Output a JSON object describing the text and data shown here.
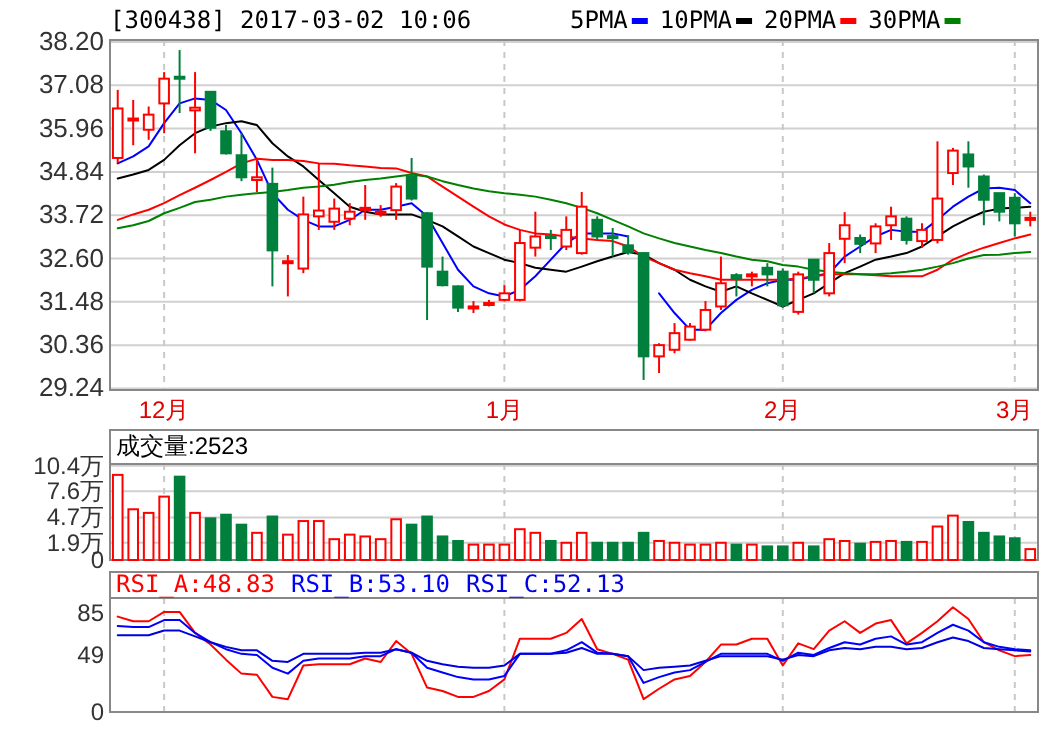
{
  "chart_data": [
    {
      "type": "candlestick",
      "title": "[300438] 2017-03-02 10:06",
      "categories": [
        null,
        null,
        null,
        "12月",
        null,
        null,
        null,
        null,
        null,
        null,
        null,
        null,
        null,
        null,
        null,
        null,
        null,
        null,
        null,
        null,
        null,
        null,
        null,
        null,
        null,
        "1月",
        null,
        null,
        null,
        null,
        null,
        null,
        null,
        null,
        null,
        null,
        null,
        null,
        null,
        null,
        null,
        null,
        null,
        "2月",
        null,
        null,
        null,
        null,
        null,
        null,
        null,
        null,
        null,
        null,
        null,
        null,
        null,
        null,
        "3月",
        null
      ],
      "ohlc": [
        [
          35.2,
          36.96,
          35.06,
          36.48
        ],
        [
          36.17,
          36.7,
          35.53,
          36.22
        ],
        [
          35.93,
          36.53,
          35.67,
          36.32
        ],
        [
          36.61,
          37.42,
          35.84,
          37.25
        ],
        [
          37.3,
          37.99,
          36.36,
          37.28
        ],
        [
          36.43,
          37.42,
          35.32,
          36.5
        ],
        [
          36.91,
          36.93,
          35.9,
          35.98
        ],
        [
          35.89,
          36.05,
          35.29,
          35.32
        ],
        [
          35.27,
          35.84,
          34.6,
          34.7
        ],
        [
          34.63,
          35.15,
          34.32,
          34.7
        ],
        [
          34.53,
          34.95,
          31.88,
          32.81
        ],
        [
          32.51,
          32.69,
          31.62,
          32.53
        ],
        [
          32.34,
          34.2,
          32.22,
          33.74
        ],
        [
          33.69,
          35.06,
          33.34,
          33.84
        ],
        [
          33.55,
          34.15,
          33.34,
          33.89
        ],
        [
          33.63,
          34.03,
          33.46,
          33.81
        ],
        [
          33.9,
          34.5,
          33.6,
          33.91
        ],
        [
          33.8,
          33.98,
          33.68,
          33.81
        ],
        [
          33.85,
          34.55,
          33.6,
          34.46
        ],
        [
          34.72,
          35.2,
          34.1,
          34.15
        ],
        [
          33.77,
          33.8,
          31.01,
          32.39
        ],
        [
          32.26,
          32.65,
          31.88,
          31.91
        ],
        [
          31.88,
          31.9,
          31.22,
          31.33
        ],
        [
          31.34,
          31.5,
          31.19,
          31.36
        ],
        [
          31.42,
          31.53,
          31.36,
          31.45
        ],
        [
          31.53,
          31.91,
          31.49,
          31.7
        ],
        [
          31.53,
          33.34,
          31.49,
          33.0
        ],
        [
          32.88,
          33.81,
          32.65,
          33.17
        ],
        [
          33.18,
          33.34,
          32.82,
          33.16
        ],
        [
          32.91,
          33.69,
          32.82,
          33.34
        ],
        [
          32.74,
          34.32,
          32.7,
          33.94
        ],
        [
          33.6,
          33.69,
          33.08,
          33.17
        ],
        [
          33.18,
          33.39,
          32.65,
          33.15
        ],
        [
          32.94,
          33.2,
          32.7,
          32.77
        ],
        [
          32.74,
          32.76,
          29.46,
          30.07
        ],
        [
          30.07,
          30.41,
          29.64,
          30.36
        ],
        [
          30.24,
          30.93,
          30.15,
          30.67
        ],
        [
          30.5,
          30.93,
          30.48,
          30.84
        ],
        [
          30.76,
          31.5,
          30.72,
          31.27
        ],
        [
          31.36,
          32.65,
          31.27,
          31.96
        ],
        [
          32.17,
          32.22,
          31.62,
          32.08
        ],
        [
          32.18,
          32.26,
          31.88,
          32.19
        ],
        [
          32.36,
          32.48,
          31.88,
          32.19
        ],
        [
          32.26,
          32.34,
          31.33,
          31.39
        ],
        [
          31.22,
          32.26,
          31.15,
          32.19
        ],
        [
          32.57,
          32.57,
          31.7,
          32.05
        ],
        [
          31.7,
          33.0,
          31.62,
          32.74
        ],
        [
          33.11,
          33.8,
          32.48,
          33.46
        ],
        [
          33.13,
          33.22,
          32.74,
          32.98
        ],
        [
          32.99,
          33.51,
          32.74,
          33.43
        ],
        [
          33.46,
          33.94,
          33.08,
          33.69
        ],
        [
          33.63,
          33.69,
          32.96,
          33.08
        ],
        [
          33.05,
          33.51,
          32.88,
          33.34
        ],
        [
          33.08,
          35.63,
          32.99,
          34.15
        ],
        [
          34.81,
          35.46,
          34.5,
          35.39
        ],
        [
          35.29,
          35.63,
          34.43,
          34.98
        ],
        [
          34.72,
          34.77,
          33.46,
          34.12
        ],
        [
          34.29,
          34.29,
          33.56,
          33.81
        ],
        [
          34.17,
          34.29,
          33.17,
          33.51
        ],
        [
          33.63,
          33.81,
          33.43,
          33.65
        ]
      ],
      "series": [
        {
          "name": "5PMA",
          "type": "line",
          "color": "#0000ff",
          "values": [
            35.06,
            35.24,
            35.5,
            36.1,
            36.61,
            36.74,
            36.7,
            36.44,
            35.84,
            35.15,
            34.29,
            33.86,
            33.6,
            33.43,
            33.43,
            33.6,
            33.86,
            33.86,
            33.94,
            34.03,
            33.69,
            33.0,
            32.31,
            31.88,
            31.7,
            31.62,
            31.79,
            32.14,
            32.57,
            33.0,
            33.25,
            33.25,
            33.25,
            33.17,
            null,
            31.7,
            31.19,
            30.76,
            30.76,
            31.19,
            31.53,
            31.79,
            31.96,
            32.05,
            32.05,
            32.14,
            32.22,
            32.65,
            32.91,
            33.17,
            33.34,
            33.29,
            33.29,
            33.6,
            33.94,
            34.2,
            34.41,
            34.43,
            34.37,
            34.03
          ]
        },
        {
          "name": "10PMA",
          "type": "line",
          "color": "#000000",
          "values": [
            34.67,
            34.77,
            34.89,
            35.15,
            35.53,
            35.84,
            36.01,
            36.1,
            36.15,
            36.05,
            35.58,
            35.24,
            34.98,
            34.63,
            34.29,
            33.94,
            33.81,
            33.74,
            33.74,
            33.74,
            33.6,
            33.43,
            33.17,
            32.91,
            32.74,
            32.57,
            32.48,
            32.36,
            32.31,
            32.26,
            32.39,
            32.53,
            32.65,
            32.77,
            32.7,
            32.48,
            32.31,
            32.05,
            31.88,
            31.74,
            31.88,
            31.7,
            31.53,
            31.36,
            31.53,
            31.7,
            31.96,
            32.22,
            32.39,
            32.57,
            32.65,
            32.74,
            32.91,
            33.17,
            33.43,
            33.63,
            33.81,
            33.89,
            33.91,
            33.94
          ]
        },
        {
          "name": "20PMA",
          "type": "line",
          "color": "#ff0000",
          "values": [
            33.6,
            33.74,
            33.86,
            34.03,
            34.24,
            34.43,
            34.63,
            34.84,
            35.06,
            35.18,
            35.15,
            35.15,
            35.12,
            35.06,
            35.05,
            35.01,
            34.98,
            34.94,
            34.93,
            34.81,
            34.72,
            34.46,
            34.2,
            33.94,
            33.69,
            33.48,
            33.34,
            33.25,
            33.22,
            33.17,
            33.12,
            33.08,
            33.05,
            32.91,
            32.65,
            32.48,
            32.31,
            32.22,
            32.14,
            32.05,
            32.05,
            32.05,
            32.05,
            32.05,
            32.08,
            32.14,
            32.19,
            32.19,
            32.19,
            32.17,
            32.14,
            32.14,
            32.14,
            32.31,
            32.57,
            32.74,
            32.88,
            33.0,
            33.12,
            33.22
          ]
        },
        {
          "name": "30PMA",
          "type": "line",
          "color": "#008000",
          "values": [
            33.38,
            33.46,
            33.57,
            33.77,
            33.91,
            34.06,
            34.12,
            34.2,
            34.25,
            34.29,
            34.32,
            34.37,
            34.43,
            34.46,
            34.51,
            34.58,
            34.63,
            34.67,
            34.72,
            34.77,
            34.72,
            34.6,
            34.5,
            34.41,
            34.34,
            34.29,
            34.25,
            34.2,
            34.12,
            34.03,
            33.91,
            33.77,
            33.6,
            33.43,
            33.25,
            33.12,
            33.0,
            32.91,
            32.82,
            32.74,
            32.65,
            32.57,
            32.53,
            32.43,
            32.39,
            32.31,
            32.26,
            32.22,
            32.19,
            32.19,
            32.22,
            32.26,
            32.31,
            32.39,
            32.48,
            32.6,
            32.69,
            32.7,
            32.74,
            32.77
          ]
        }
      ],
      "ylim": [
        29.2,
        38.25
      ],
      "yticks": [
        {
          "value": 29.24,
          "label": "29.24"
        },
        {
          "value": 30.36,
          "label": "30.36"
        },
        {
          "value": 31.48,
          "label": "31.48"
        },
        {
          "value": 32.6,
          "label": "32.60"
        },
        {
          "value": 33.72,
          "label": "33.72"
        },
        {
          "value": 34.84,
          "label": "34.84"
        },
        {
          "value": 35.96,
          "label": "35.96"
        },
        {
          "value": 37.08,
          "label": "37.08"
        },
        {
          "value": 38.2,
          "label": "38.20"
        }
      ],
      "grid": true,
      "legend": "top"
    },
    {
      "type": "bar",
      "title": "成交量:2523",
      "categories": [
        null,
        null,
        null,
        null,
        null,
        null,
        null,
        null,
        null,
        null,
        null,
        null,
        null,
        null,
        null,
        null,
        null,
        null,
        null,
        null,
        null,
        null,
        null,
        null,
        null,
        null,
        null,
        null,
        null,
        null,
        null,
        null,
        null,
        null,
        null,
        null,
        null,
        null,
        null,
        null,
        null,
        null,
        null,
        null,
        null,
        null,
        null,
        null,
        null,
        null,
        null,
        null,
        null,
        null,
        null,
        null,
        null,
        null,
        null,
        null
      ],
      "values": [
        9.4,
        5.6,
        5.2,
        7.0,
        9.2,
        5.2,
        4.6,
        5.0,
        3.9,
        3.0,
        4.8,
        2.8,
        4.3,
        4.3,
        2.3,
        2.8,
        2.6,
        2.3,
        4.5,
        3.9,
        4.8,
        2.6,
        2.1,
        1.7,
        1.7,
        1.7,
        3.4,
        3.0,
        2.1,
        1.9,
        3.0,
        1.9,
        1.9,
        1.9,
        3.0,
        2.1,
        1.9,
        1.7,
        1.7,
        1.9,
        1.7,
        1.7,
        1.5,
        1.5,
        1.9,
        1.5,
        2.3,
        2.1,
        1.8,
        2.0,
        2.1,
        2.0,
        2.0,
        3.7,
        4.9,
        4.2,
        3.0,
        2.6,
        2.4,
        1.2
      ],
      "colors": [
        "#ff0000",
        "#ff0000",
        "#ff0000",
        "#ff0000",
        "#00803c",
        "#ff0000",
        "#00803c",
        "#00803c",
        "#00803c",
        "#ff0000",
        "#00803c",
        "#ff0000",
        "#ff0000",
        "#ff0000",
        "#ff0000",
        "#ff0000",
        "#ff0000",
        "#ff0000",
        "#ff0000",
        "#00803c",
        "#00803c",
        "#00803c",
        "#00803c",
        "#ff0000",
        "#ff0000",
        "#ff0000",
        "#ff0000",
        "#ff0000",
        "#00803c",
        "#ff0000",
        "#ff0000",
        "#00803c",
        "#00803c",
        "#00803c",
        "#00803c",
        "#ff0000",
        "#ff0000",
        "#ff0000",
        "#ff0000",
        "#ff0000",
        "#00803c",
        "#ff0000",
        "#00803c",
        "#00803c",
        "#ff0000",
        "#00803c",
        "#ff0000",
        "#ff0000",
        "#00803c",
        "#ff0000",
        "#ff0000",
        "#00803c",
        "#ff0000",
        "#ff0000",
        "#ff0000",
        "#00803c",
        "#00803c",
        "#00803c",
        "#00803c",
        "#ff0000"
      ],
      "ylim": [
        0,
        10.6
      ],
      "yticks": [
        0,
        {
          "value": 1.9,
          "label": "1.9万"
        },
        {
          "value": 4.7,
          "label": "4.7万"
        },
        {
          "value": 7.6,
          "label": "7.6万"
        },
        {
          "value": 10.4,
          "label": "10.4万"
        }
      ],
      "grid": true,
      "tick_labels": "y"
    },
    {
      "type": "line",
      "categories": [
        null,
        null,
        null,
        null,
        null,
        null,
        null,
        null,
        null,
        null,
        null,
        null,
        null,
        null,
        null,
        null,
        null,
        null,
        null,
        null,
        null,
        null,
        null,
        null,
        null,
        null,
        null,
        null,
        null,
        null,
        null,
        null,
        null,
        null,
        null,
        null,
        null,
        null,
        null,
        null,
        null,
        null,
        null,
        null,
        null,
        null,
        null,
        null,
        null,
        null,
        null,
        null,
        null,
        null,
        null,
        null,
        null,
        null,
        null,
        null
      ],
      "series": [
        {
          "name": "RSI_A:48.83",
          "color": "#ff0000",
          "values": [
            82,
            78,
            78,
            86,
            86,
            68,
            58,
            45,
            33,
            32,
            13,
            11,
            40,
            41,
            41,
            41,
            46,
            43,
            61,
            50,
            21,
            18,
            13,
            13,
            18,
            28,
            63,
            63,
            63,
            68,
            80,
            54,
            50,
            45,
            11,
            20,
            28,
            31,
            43,
            58,
            58,
            63,
            63,
            40,
            59,
            54,
            70,
            78,
            68,
            76,
            79,
            59,
            68,
            78,
            90,
            80,
            60,
            53,
            48,
            49
          ]
        },
        {
          "name": "RSI_B:53.10",
          "color": "#0000ff",
          "values": [
            74,
            73,
            73,
            79,
            79,
            68,
            60,
            54,
            50,
            49,
            38,
            33,
            44,
            46,
            46,
            46,
            48,
            48,
            54,
            51,
            38,
            34,
            30,
            28,
            28,
            31,
            50,
            50,
            50,
            53,
            60,
            51,
            50,
            48,
            25,
            30,
            34,
            36,
            43,
            50,
            50,
            50,
            50,
            44,
            51,
            49,
            55,
            60,
            58,
            63,
            65,
            58,
            60,
            68,
            75,
            70,
            60,
            56,
            54,
            53
          ]
        },
        {
          "name": "RSI_C:52.13",
          "color": "#0000e0",
          "values": [
            66,
            66,
            66,
            70,
            70,
            65,
            60,
            56,
            53,
            53,
            44,
            43,
            50,
            50,
            50,
            50,
            51,
            51,
            54,
            51,
            44,
            41,
            39,
            38,
            38,
            40,
            50,
            50,
            50,
            51,
            55,
            50,
            50,
            48,
            36,
            38,
            39,
            40,
            44,
            48,
            48,
            48,
            48,
            45,
            49,
            48,
            53,
            55,
            54,
            56,
            56,
            54,
            55,
            60,
            64,
            61,
            55,
            54,
            53,
            52
          ]
        }
      ],
      "ylim": [
        0,
        98
      ],
      "yticks": [
        0,
        49,
        85
      ],
      "grid": "x",
      "tick_labels": "y",
      "legend": "top left"
    }
  ]
}
